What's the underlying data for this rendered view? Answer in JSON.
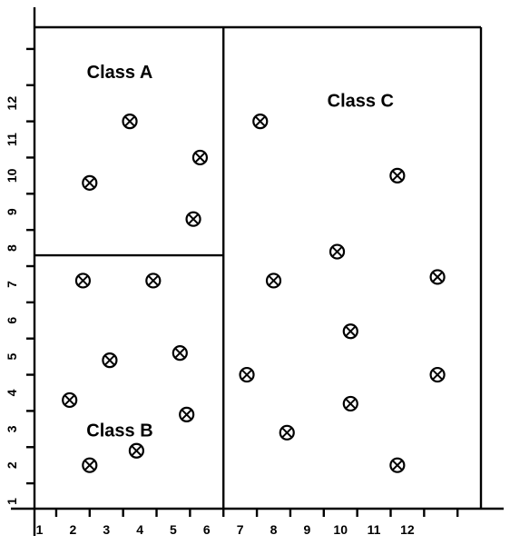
{
  "chart_data": {
    "type": "scatter",
    "title": "",
    "xlabel": "",
    "ylabel": "",
    "grid": false,
    "xlim": [
      0.35,
      13.7
    ],
    "ylim": [
      0.3,
      13.6
    ],
    "x_ticks": [
      "1",
      "2",
      "3",
      "4",
      "5",
      "6",
      "7",
      "8",
      "9",
      "10",
      "11",
      "12"
    ],
    "y_ticks": [
      "1",
      "2",
      "3",
      "4",
      "5",
      "6",
      "7",
      "8",
      "9",
      "10",
      "11",
      "12"
    ],
    "marker": "circled-x",
    "colors": {
      "line": "#000000",
      "background": "#ffffff"
    },
    "regions": [
      {
        "label": "Class A",
        "x_range": [
          0.35,
          6.0
        ],
        "y_range": [
          7.3,
          13.6
        ]
      },
      {
        "label": "Class B",
        "x_range": [
          0.35,
          6.0
        ],
        "y_range": [
          0.3,
          7.3
        ]
      },
      {
        "label": "Class C",
        "x_range": [
          6.0,
          13.7
        ],
        "y_range": [
          0.3,
          13.6
        ]
      }
    ],
    "series": [
      {
        "name": "Class A",
        "points": [
          {
            "x": 3.2,
            "y": 11.0
          },
          {
            "x": 5.3,
            "y": 10.0
          },
          {
            "x": 2.0,
            "y": 9.3
          },
          {
            "x": 5.1,
            "y": 8.3
          }
        ]
      },
      {
        "name": "Class B",
        "points": [
          {
            "x": 1.8,
            "y": 6.6
          },
          {
            "x": 3.9,
            "y": 6.6
          },
          {
            "x": 4.7,
            "y": 4.6
          },
          {
            "x": 2.6,
            "y": 4.4
          },
          {
            "x": 1.4,
            "y": 3.3
          },
          {
            "x": 4.9,
            "y": 2.9
          },
          {
            "x": 3.4,
            "y": 1.9
          },
          {
            "x": 2.0,
            "y": 1.5
          }
        ]
      },
      {
        "name": "Class C",
        "points": [
          {
            "x": 7.1,
            "y": 11.0
          },
          {
            "x": 11.2,
            "y": 9.5
          },
          {
            "x": 9.4,
            "y": 7.4
          },
          {
            "x": 7.5,
            "y": 6.6
          },
          {
            "x": 12.4,
            "y": 6.7
          },
          {
            "x": 9.8,
            "y": 5.2
          },
          {
            "x": 6.7,
            "y": 4.0
          },
          {
            "x": 12.4,
            "y": 4.0
          },
          {
            "x": 9.8,
            "y": 3.2
          },
          {
            "x": 7.9,
            "y": 2.4
          },
          {
            "x": 11.2,
            "y": 1.5
          }
        ]
      }
    ],
    "annotations": [
      {
        "text": "Class A",
        "x": 2.9,
        "y": 12.2
      },
      {
        "text": "Class B",
        "x": 2.9,
        "y": 2.3
      },
      {
        "text": "Class C",
        "x": 10.1,
        "y": 11.4
      }
    ]
  }
}
